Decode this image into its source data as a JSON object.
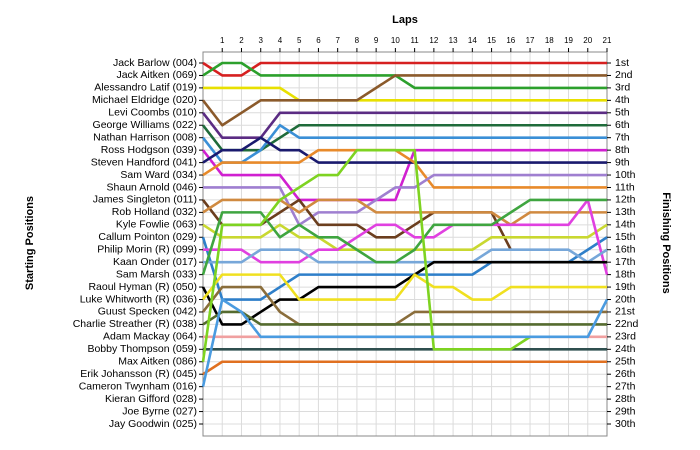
{
  "chart_data": {
    "type": "line",
    "title": "Laps",
    "y_label_left": "Starting Positions",
    "y_label_right": "Finishing Positions",
    "xlim": [
      0,
      21
    ],
    "xticks": [
      1,
      2,
      3,
      4,
      5,
      6,
      7,
      8,
      9,
      10,
      11,
      12,
      13,
      14,
      15,
      16,
      17,
      18,
      19,
      20,
      21
    ],
    "ylim": [
      1,
      30
    ],
    "grid": true,
    "starting_positions": [
      "Jack Barlow (004)",
      "Jack Aitken (069)",
      "Alessandro Latif (019)",
      "Michael Eldridge (020)",
      "Levi Coombs (010)",
      "George Williams (022)",
      "Nathan Harrison (008)",
      "Ross Hodgson (039)",
      "Steven Handford (041)",
      "Sam Ward (034)",
      "Shaun Arnold (046)",
      "James Singleton (011)",
      "Rob Holland (032)",
      "Kyle Fowlie (063)",
      "Callum Pointon (029)",
      "Philip Morin (R) (099)",
      "Kaan Onder (017)",
      "Sam Marsh (033)",
      "Raoul Hyman  (R) (050)",
      "Luke Whitworth (R) (036)",
      "Guust Specken (042)",
      "Charlie Streather (R) (038)",
      "Adam Mackay (064)",
      "Bobby Thompson (059)",
      "Max Aitken (086)",
      "Erik Johansson (R) (045)",
      "Cameron Twynham (016)",
      "Kieran Gifford (028)",
      "Joe Byrne (027)",
      "Jay Goodwin (025)"
    ],
    "finishing_positions": [
      "1st",
      "2nd",
      "3rd",
      "4th",
      "5th",
      "6th",
      "7th",
      "8th",
      "9th",
      "10th",
      "11th",
      "12th",
      "13th",
      "14th",
      "15th",
      "16th",
      "17th",
      "18th",
      "19th",
      "20th",
      "21st",
      "22nd",
      "23rd",
      "24th",
      "25th",
      "26th",
      "27th",
      "28th",
      "29th",
      "30th"
    ],
    "series": [
      {
        "color": "#d62020",
        "values": [
          1,
          2,
          2,
          1,
          1,
          1,
          1,
          1,
          1,
          1,
          1,
          1,
          1,
          1,
          1,
          1,
          1,
          1,
          1,
          1,
          1,
          1
        ]
      },
      {
        "color": "#2ca02c",
        "values": [
          2,
          1,
          1,
          2,
          2,
          2,
          2,
          2,
          2,
          2,
          2,
          3,
          3,
          3,
          3,
          3,
          3,
          3,
          3,
          3,
          3,
          3
        ]
      },
      {
        "color": "#e8e000",
        "values": [
          3,
          3,
          3,
          3,
          3,
          4,
          4,
          4,
          4,
          4,
          4,
          4,
          4,
          4,
          4,
          4,
          4,
          4,
          4,
          4,
          4,
          4
        ]
      },
      {
        "color": "#8b5a2b",
        "values": [
          4,
          6,
          5,
          4,
          4,
          4,
          4,
          4,
          4,
          3,
          2,
          2,
          2,
          2,
          2,
          2,
          2,
          2,
          2,
          2,
          2,
          2
        ]
      },
      {
        "color": "#5b2c83",
        "values": [
          5,
          7,
          7,
          7,
          5,
          5,
          5,
          5,
          5,
          5,
          5,
          5,
          5,
          5,
          5,
          5,
          5,
          5,
          5,
          5,
          5,
          5
        ]
      },
      {
        "color": "#1f6b3a",
        "values": [
          6,
          8,
          8,
          8,
          7,
          6,
          6,
          6,
          6,
          6,
          6,
          6,
          6,
          6,
          6,
          6,
          6,
          6,
          6,
          6,
          6,
          6
        ]
      },
      {
        "color": "#3a8fd6",
        "values": [
          7,
          9,
          9,
          8,
          6,
          7,
          7,
          7,
          7,
          7,
          7,
          7,
          7,
          7,
          7,
          7,
          7,
          7,
          7,
          7,
          7,
          7
        ]
      },
      {
        "color": "#d020d0",
        "values": [
          8,
          10,
          10,
          10,
          10,
          12,
          12,
          12,
          12,
          12,
          12,
          8,
          8,
          8,
          8,
          8,
          8,
          8,
          8,
          8,
          8,
          8
        ]
      },
      {
        "color": "#1a1a6e",
        "values": [
          9,
          8,
          8,
          7,
          8,
          8,
          9,
          9,
          9,
          9,
          9,
          9,
          9,
          9,
          9,
          9,
          9,
          9,
          9,
          9,
          9,
          9
        ]
      },
      {
        "color": "#e88a2a",
        "values": [
          10,
          9,
          9,
          9,
          9,
          9,
          8,
          8,
          8,
          8,
          8,
          9,
          11,
          11,
          11,
          11,
          11,
          11,
          11,
          11,
          11,
          11
        ]
      },
      {
        "color": "#9f7fd0",
        "values": [
          11,
          11,
          11,
          11,
          11,
          14,
          13,
          13,
          13,
          12,
          11,
          11,
          10,
          10,
          10,
          10,
          10,
          10,
          10,
          10,
          10,
          10
        ]
      },
      {
        "color": "#6b3e1e",
        "values": [
          12,
          14,
          14,
          14,
          13,
          12,
          14,
          14,
          14,
          15,
          15,
          14,
          13,
          13,
          13,
          13,
          16,
          null,
          null,
          null,
          null,
          null
        ]
      },
      {
        "color": "#d08a40",
        "values": [
          13,
          12,
          12,
          12,
          12,
          13,
          12,
          12,
          12,
          13,
          13,
          13,
          13,
          13,
          13,
          13,
          14,
          13,
          13,
          13,
          13,
          13
        ]
      },
      {
        "color": "#c9d830",
        "values": [
          14,
          15,
          15,
          15,
          14,
          15,
          15,
          16,
          16,
          16,
          16,
          16,
          16,
          16,
          16,
          15,
          15,
          15,
          15,
          15,
          15,
          14
        ]
      },
      {
        "color": "#2e7fc9",
        "values": [
          15,
          20,
          20,
          20,
          19,
          18,
          18,
          18,
          18,
          18,
          18,
          18,
          18,
          18,
          18,
          17,
          17,
          17,
          17,
          17,
          16,
          15
        ]
      },
      {
        "color": "#e040e0",
        "values": [
          16,
          16,
          16,
          17,
          17,
          17,
          16,
          16,
          15,
          14,
          14,
          15,
          15,
          14,
          14,
          14,
          14,
          14,
          14,
          14,
          12,
          18
        ]
      },
      {
        "color": "#77a7d9",
        "values": [
          17,
          17,
          17,
          16,
          16,
          16,
          17,
          17,
          17,
          17,
          17,
          17,
          17,
          17,
          17,
          16,
          16,
          16,
          16,
          16,
          17,
          16
        ]
      },
      {
        "color": "#3fa540",
        "values": [
          18,
          13,
          13,
          13,
          15,
          14,
          15,
          15,
          16,
          17,
          17,
          16,
          14,
          14,
          14,
          14,
          13,
          12,
          12,
          12,
          12,
          12
        ]
      },
      {
        "color": "#000000",
        "values": [
          19,
          22,
          22,
          21,
          20,
          20,
          19,
          19,
          19,
          19,
          19,
          18,
          17,
          17,
          17,
          17,
          17,
          17,
          17,
          17,
          17,
          17
        ]
      },
      {
        "color": "#f0e020",
        "values": [
          20,
          18,
          18,
          18,
          18,
          20,
          20,
          20,
          20,
          20,
          20,
          18,
          19,
          19,
          20,
          20,
          19,
          19,
          19,
          19,
          19,
          19
        ]
      },
      {
        "color": "#8a6d3b",
        "values": [
          21,
          19,
          19,
          19,
          21,
          22,
          22,
          22,
          22,
          22,
          22,
          21,
          21,
          21,
          21,
          21,
          21,
          21,
          21,
          21,
          21,
          21
        ]
      },
      {
        "color": "#556b2f",
        "values": [
          22,
          21,
          21,
          22,
          22,
          22,
          22,
          22,
          22,
          22,
          22,
          22,
          22,
          22,
          22,
          22,
          22,
          22,
          22,
          22,
          22,
          22
        ]
      },
      {
        "color": "#f0a0a0",
        "values": [
          23,
          23,
          23,
          23,
          23,
          23,
          23,
          23,
          23,
          23,
          23,
          23,
          23,
          23,
          23,
          23,
          23,
          23,
          23,
          23,
          23,
          23
        ]
      },
      {
        "color": "#2f4f4f",
        "values": [
          24,
          24,
          24,
          24,
          24,
          24,
          24,
          24,
          24,
          24,
          24,
          24,
          24,
          24,
          24,
          24,
          24,
          24,
          24,
          24,
          24,
          24
        ]
      },
      {
        "color": "#7ed321",
        "values": [
          25,
          14,
          14,
          14,
          12,
          11,
          10,
          10,
          8,
          8,
          8,
          8,
          24,
          24,
          24,
          24,
          24,
          23,
          null,
          null,
          null,
          null
        ]
      },
      {
        "color": "#e07020",
        "values": [
          26,
          25,
          25,
          25,
          25,
          25,
          25,
          25,
          25,
          25,
          25,
          25,
          25,
          25,
          25,
          25,
          25,
          25,
          25,
          25,
          25,
          25
        ]
      },
      {
        "color": "#4a9be0",
        "values": [
          27,
          20,
          21,
          23,
          23,
          23,
          23,
          23,
          23,
          23,
          23,
          23,
          23,
          23,
          23,
          23,
          23,
          23,
          23,
          23,
          23,
          20
        ]
      }
    ]
  }
}
